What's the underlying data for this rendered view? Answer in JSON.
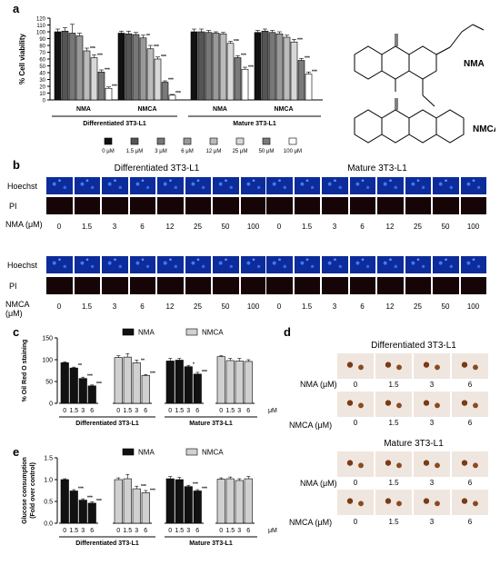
{
  "panel_labels": {
    "a": "a",
    "b": "b",
    "c": "c",
    "d": "d",
    "e": "e"
  },
  "chart_data": [
    {
      "type": "bar",
      "panel": "a",
      "ylabel": "% Cell viability",
      "ylim": [
        0,
        120
      ],
      "yticks": [
        0,
        10,
        20,
        30,
        40,
        50,
        60,
        70,
        80,
        90,
        100,
        110,
        120
      ],
      "groups": [
        "NMA",
        "NMCA",
        "NMA",
        "NMCA"
      ],
      "group_sets": [
        {
          "label": "Differentiated 3T3-L1"
        },
        {
          "label": "Mature 3T3-L1"
        }
      ],
      "series": [
        {
          "name": "0 μM",
          "color": "#111111",
          "values": [
            100,
            98,
            100,
            99
          ]
        },
        {
          "name": "1.5 μM",
          "color": "#555555",
          "values": [
            101,
            97,
            100,
            101
          ]
        },
        {
          "name": "3 μM",
          "color": "#777777",
          "values": [
            98,
            96,
            99,
            99
          ]
        },
        {
          "name": "6 μM",
          "color": "#999999",
          "values": [
            94,
            91,
            98,
            97
          ]
        },
        {
          "name": "12 μM",
          "color": "#bbbbbb",
          "values": [
            72,
            75,
            97,
            92
          ]
        },
        {
          "name": "25 μM",
          "color": "#d8d8d8",
          "values": [
            62,
            60,
            83,
            85
          ]
        },
        {
          "name": "50 μM",
          "color": "#7a7a7a",
          "values": [
            41,
            26,
            62,
            58
          ]
        },
        {
          "name": "100 μM",
          "color": "#ffffff",
          "values": [
            17,
            7,
            45,
            38
          ]
        }
      ],
      "errors": [
        [
          4,
          3,
          4,
          3
        ],
        [
          5,
          4,
          4,
          3
        ],
        [
          13,
          3,
          3,
          3
        ],
        [
          4,
          4,
          2,
          3
        ],
        [
          4,
          5,
          2,
          3
        ],
        [
          4,
          3,
          3,
          4
        ],
        [
          3,
          2,
          3,
          3
        ],
        [
          2,
          1,
          3,
          3
        ]
      ],
      "stars": [
        [
          "",
          "",
          "",
          ""
        ],
        [
          "",
          "",
          "",
          ""
        ],
        [
          "",
          "",
          "",
          ""
        ],
        [
          "",
          "**",
          "",
          ""
        ],
        [
          "***",
          "***",
          "",
          ""
        ],
        [
          "***",
          "***",
          "***",
          "***"
        ],
        [
          "***",
          "***",
          "***",
          "***"
        ],
        [
          "***",
          "***",
          "***",
          "***"
        ]
      ]
    },
    {
      "type": "bar",
      "panel": "c",
      "ylabel": "% Oil Red O staining",
      "ylim": [
        0,
        150
      ],
      "yticks": [
        0,
        50,
        100,
        150
      ],
      "categories": [
        "0",
        "1.5",
        "3",
        "6"
      ],
      "unit": "μM",
      "group_sets": [
        {
          "label": "Differentiated 3T3-L1"
        },
        {
          "label": "Mature 3T3-L1"
        }
      ],
      "series": [
        {
          "name": "NMA",
          "color": "#111111",
          "values": [
            [
              93,
              81,
              57,
              40
            ],
            [
              97,
              99,
              84,
              67
            ]
          ],
          "errors": [
            [
              2,
              2,
              3,
              2
            ],
            [
              6,
              4,
              3,
              4
            ]
          ],
          "stars": [
            [
              "",
              "**",
              "***",
              "***"
            ],
            [
              "",
              "",
              "*",
              "***"
            ]
          ]
        },
        {
          "name": "NMCA",
          "color": "#d0d0d0",
          "values": [
            [
              105,
              106,
              93,
              64
            ],
            [
              107,
              98,
              97,
              96
            ]
          ],
          "errors": [
            [
              4,
              8,
              6,
              2
            ],
            [
              2,
              5,
              6,
              4
            ]
          ],
          "stars": [
            [
              "",
              "",
              "**",
              "***"
            ],
            [
              "",
              "",
              "",
              ""
            ]
          ]
        }
      ]
    },
    {
      "type": "bar",
      "panel": "e",
      "ylabel": "Glucose consumption (Fold over control)",
      "ylim": [
        0,
        1.5
      ],
      "yticks": [
        0,
        0.5,
        1.0,
        1.5
      ],
      "categories": [
        "0",
        "1.5",
        "3",
        "6"
      ],
      "unit": "μM",
      "group_sets": [
        {
          "label": "Differentiated 3T3-L1"
        },
        {
          "label": "Mature 3T3-L1"
        }
      ],
      "series": [
        {
          "name": "NMA",
          "color": "#111111",
          "values": [
            [
              1.0,
              0.74,
              0.53,
              0.46
            ],
            [
              1.02,
              1.0,
              0.84,
              0.74
            ]
          ],
          "errors": [
            [
              0.02,
              0.03,
              0.03,
              0.03
            ],
            [
              0.05,
              0.05,
              0.03,
              0.03
            ]
          ],
          "stars": [
            [
              "",
              "***",
              "***",
              "***"
            ],
            [
              "",
              "",
              "***",
              "***"
            ]
          ]
        },
        {
          "name": "NMCA",
          "color": "#d0d0d0",
          "values": [
            [
              1.0,
              1.02,
              0.79,
              0.7
            ],
            [
              1.01,
              1.02,
              0.98,
              1.02
            ]
          ],
          "errors": [
            [
              0.04,
              0.1,
              0.06,
              0.05
            ],
            [
              0.03,
              0.04,
              0.04,
              0.05
            ]
          ],
          "stars": [
            [
              "",
              "",
              "***",
              "***"
            ],
            [
              "",
              "",
              "",
              ""
            ]
          ]
        }
      ]
    }
  ],
  "structures": {
    "nma_label": "NMA",
    "nmca_label": "NMCA"
  },
  "micrographs_b": {
    "titles": [
      "Differentiated 3T3-L1",
      "Mature 3T3-L1"
    ],
    "row_hoechst": "Hoechst",
    "row_pi": "PI",
    "nma_label": "NMA (μM)",
    "nmca_label": "NMCA (μM)",
    "concentrations": [
      "0",
      "1.5",
      "3",
      "6",
      "12",
      "25",
      "50",
      "100"
    ]
  },
  "micrographs_d": {
    "titles": [
      "Differentiated 3T3-L1",
      "Mature 3T3-L1"
    ],
    "nma_label": "NMA (μM)",
    "nmca_label": "NMCA (μM)",
    "concentrations": [
      "0",
      "1.5",
      "3",
      "6"
    ]
  }
}
